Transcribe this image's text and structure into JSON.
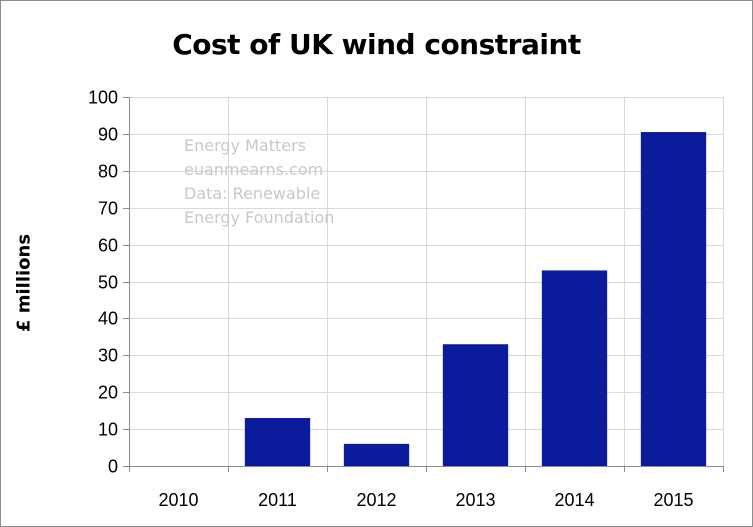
{
  "chart_data": {
    "type": "bar",
    "title": "Cost of UK wind constraint",
    "xlabel": "",
    "ylabel": "£ millions",
    "categories": [
      "2010",
      "2011",
      "2012",
      "2013",
      "2014",
      "2015"
    ],
    "values": [
      0,
      13,
      6,
      33,
      53,
      90.5
    ],
    "ylim": [
      0,
      100
    ],
    "yticks": [
      0,
      10,
      20,
      30,
      40,
      50,
      60,
      70,
      80,
      90,
      100
    ],
    "grid": true,
    "legend": "none",
    "bar_color": "#0a1c9c",
    "annotation": [
      "Energy Matters",
      "euanmearns.com",
      "Data: Renewable",
      "Energy Foundation"
    ]
  }
}
